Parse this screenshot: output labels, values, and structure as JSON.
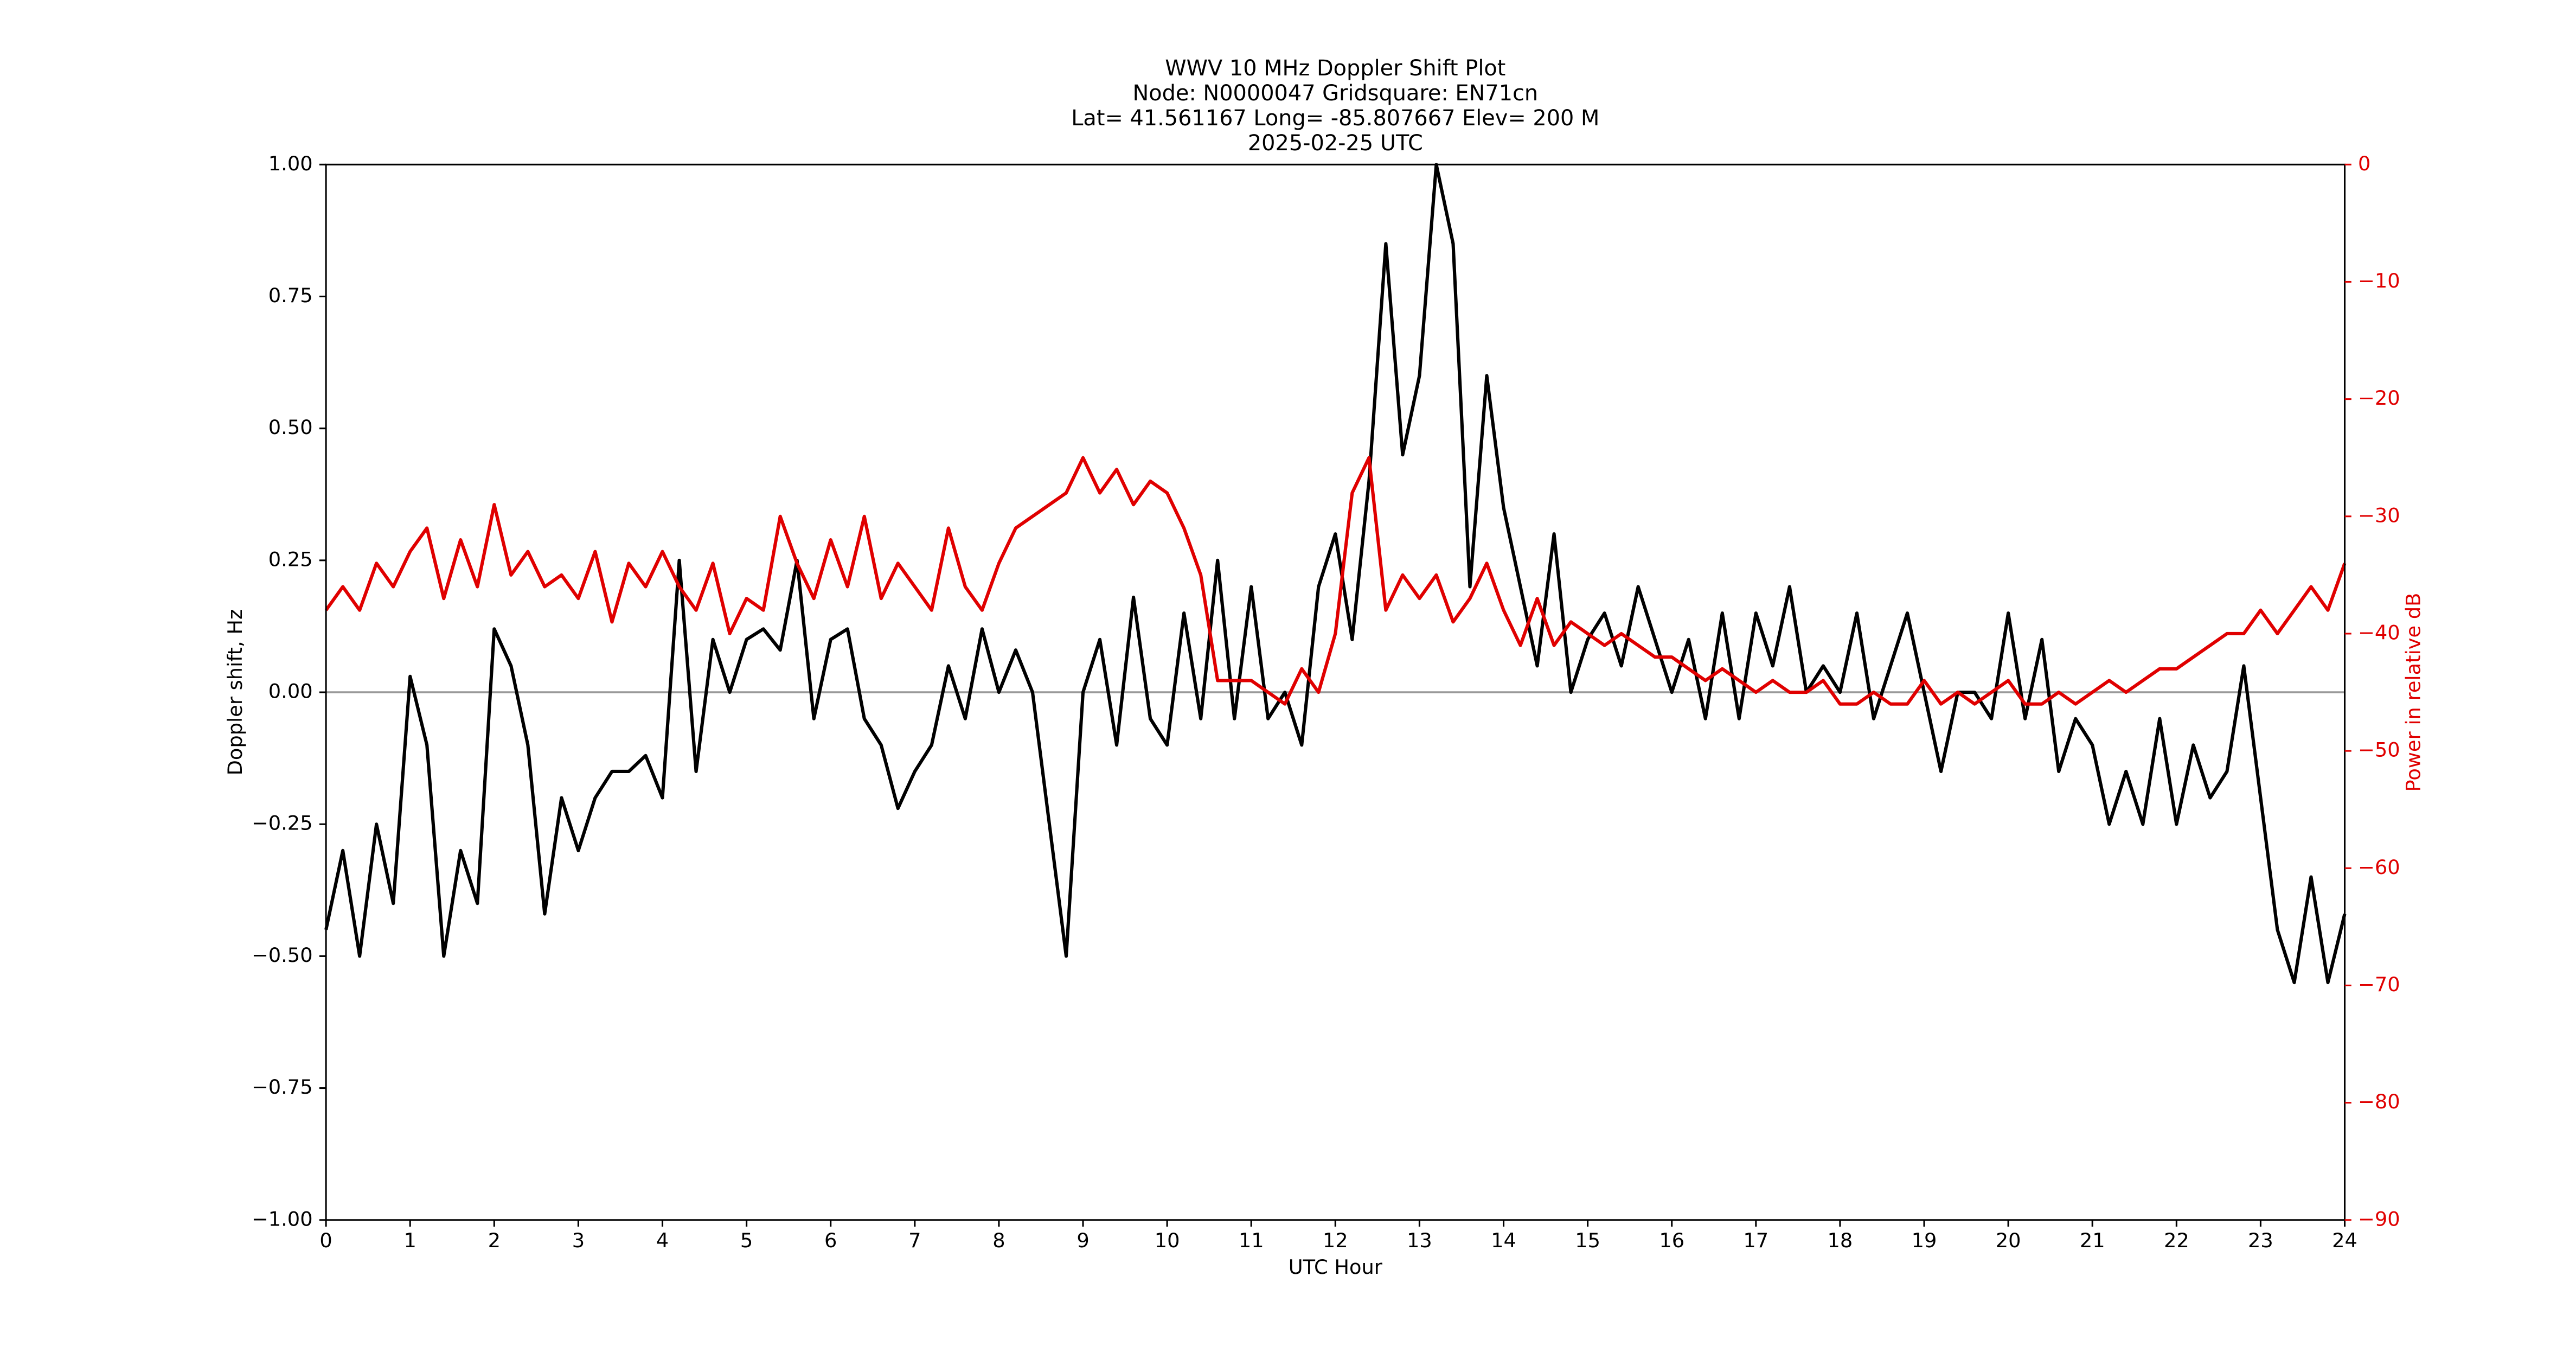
{
  "chart_data": {
    "type": "line",
    "title": [
      "WWV 10 MHz Doppler Shift Plot",
      "Node:  N0000047     Gridsquare:  EN71cn",
      "Lat= 41.561167    Long= -85.807667    Elev= 200 M",
      "2025-02-25  UTC"
    ],
    "xlabel": "UTC Hour",
    "ylabel": "Doppler shift, Hz",
    "y2label": "Power in relative dB",
    "xlim": [
      0,
      24
    ],
    "xticks": [
      0,
      1,
      2,
      3,
      4,
      5,
      6,
      7,
      8,
      9,
      10,
      11,
      12,
      13,
      14,
      15,
      16,
      17,
      18,
      19,
      20,
      21,
      22,
      23,
      24
    ],
    "ylim": [
      -1,
      1
    ],
    "yticks": [
      {
        "value": -1,
        "label": "−1.00"
      },
      {
        "value": -0.75,
        "label": "−0.75"
      },
      {
        "value": -0.5,
        "label": "−0.50"
      },
      {
        "value": -0.25,
        "label": "−0.25"
      },
      {
        "value": 0,
        "label": "0.00"
      },
      {
        "value": 0.25,
        "label": "0.25"
      },
      {
        "value": 0.5,
        "label": "0.50"
      },
      {
        "value": 0.75,
        "label": "0.75"
      },
      {
        "value": 1,
        "label": "1.00"
      }
    ],
    "y2lim": [
      -90,
      0
    ],
    "y2ticks": [
      {
        "value": -90,
        "label": "−90"
      },
      {
        "value": -80,
        "label": "−80"
      },
      {
        "value": -70,
        "label": "−70"
      },
      {
        "value": -60,
        "label": "−60"
      },
      {
        "value": -50,
        "label": "−50"
      },
      {
        "value": -40,
        "label": "−40"
      },
      {
        "value": -30,
        "label": "−30"
      },
      {
        "value": -20,
        "label": "−20"
      },
      {
        "value": -10,
        "label": "−10"
      },
      0
    ],
    "y2color": "#e00000",
    "hline": 0,
    "hline_color": "#999999",
    "x": [
      0,
      0.2,
      0.4,
      0.6,
      0.8,
      1,
      1.2,
      1.4,
      1.6,
      1.8,
      2,
      2.2,
      2.4,
      2.6,
      2.8,
      3,
      3.2,
      3.4,
      3.6,
      3.8,
      4,
      4.2,
      4.4,
      4.6,
      4.8,
      5,
      5.2,
      5.4,
      5.6,
      5.8,
      6,
      6.2,
      6.4,
      6.6,
      6.8,
      7,
      7.2,
      7.4,
      7.6,
      7.8,
      8,
      8.2,
      8.4,
      8.6,
      8.8,
      9,
      9.2,
      9.4,
      9.6,
      9.8,
      10,
      10.2,
      10.4,
      10.6,
      10.8,
      11,
      11.2,
      11.4,
      11.6,
      11.8,
      12,
      12.2,
      12.4,
      12.6,
      12.8,
      13,
      13.2,
      13.4,
      13.6,
      13.8,
      14,
      14.2,
      14.4,
      14.6,
      14.8,
      15,
      15.2,
      15.4,
      15.6,
      15.8,
      16,
      16.2,
      16.4,
      16.6,
      16.8,
      17,
      17.2,
      17.4,
      17.6,
      17.8,
      18,
      18.2,
      18.4,
      18.6,
      18.8,
      19,
      19.2,
      19.4,
      19.6,
      19.8,
      20,
      20.2,
      20.4,
      20.6,
      20.8,
      21,
      21.2,
      21.4,
      21.6,
      21.8,
      22,
      22.2,
      22.4,
      22.6,
      22.8,
      23,
      23.2,
      23.4,
      23.6,
      23.8,
      24
    ],
    "series": [
      {
        "color": "#000000",
        "values": [
          -0.45,
          -0.3,
          -0.5,
          -0.25,
          -0.4,
          0.03,
          -0.1,
          -0.5,
          -0.3,
          -0.4,
          0.12,
          0.05,
          -0.1,
          -0.42,
          -0.2,
          -0.3,
          -0.2,
          -0.15,
          -0.15,
          -0.12,
          -0.2,
          0.25,
          -0.15,
          0.1,
          0,
          0.1,
          0.12,
          0.08,
          0.25,
          -0.05,
          0.1,
          0.12,
          -0.05,
          -0.1,
          -0.22,
          -0.15,
          -0.1,
          0.05,
          -0.05,
          0.12,
          0,
          0.08,
          0,
          -0.25,
          -0.5,
          0,
          0.1,
          -0.1,
          0.18,
          -0.05,
          -0.1,
          0.15,
          -0.05,
          0.25,
          -0.05,
          0.2,
          -0.05,
          0,
          -0.1,
          0.2,
          0.3,
          0.1,
          0.4,
          0.85,
          0.45,
          0.6,
          1,
          0.85,
          0.2,
          0.6,
          0.35,
          0.2,
          0.05,
          0.3,
          0,
          0.1,
          0.15,
          0.05,
          0.2,
          0.1,
          0,
          0.1,
          -0.05,
          0.15,
          -0.05,
          0.15,
          0.05,
          0.2,
          0,
          0.05,
          0,
          0.15,
          -0.05,
          0.05,
          0.15,
          0,
          -0.15,
          0,
          0,
          -0.05,
          0.15,
          -0.05,
          0.1,
          -0.15,
          -0.05,
          -0.1,
          -0.25,
          -0.15,
          -0.25,
          -0.05,
          -0.25,
          -0.1,
          -0.2,
          -0.15,
          0.05,
          -0.2,
          -0.45,
          -0.55,
          -0.35,
          -0.55,
          -0.42
        ]
      },
      {
        "color": "#e00000",
        "axis": "y2",
        "values": [
          -38,
          -36,
          -38,
          -34,
          -36,
          -33,
          -31,
          -37,
          -32,
          -36,
          -29,
          -35,
          -33,
          -36,
          -35,
          -37,
          -33,
          -39,
          -34,
          -36,
          -33,
          -36,
          -38,
          -34,
          -40,
          -37,
          -38,
          -30,
          -34,
          -37,
          -32,
          -36,
          -30,
          -37,
          -34,
          -36,
          -38,
          -31,
          -36,
          -38,
          -34,
          -31,
          -30,
          -29,
          -28,
          -25,
          -28,
          -26,
          -29,
          -27,
          -28,
          -31,
          -35,
          -44,
          -44,
          -44,
          -45,
          -46,
          -43,
          -45,
          -40,
          -28,
          -25,
          -38,
          -35,
          -37,
          -35,
          -39,
          -37,
          -34,
          -38,
          -41,
          -37,
          -41,
          -39,
          -40,
          -41,
          -40,
          -41,
          -42,
          -42,
          -43,
          -44,
          -43,
          -44,
          -45,
          -44,
          -45,
          -45,
          -44,
          -46,
          -46,
          -45,
          -46,
          -46,
          -44,
          -46,
          -45,
          -46,
          -45,
          -44,
          -46,
          -46,
          -45,
          -46,
          -45,
          -44,
          -45,
          -44,
          -43,
          -43,
          -42,
          -41,
          -40,
          -40,
          -38,
          -40,
          -38,
          -36,
          -38,
          -34
        ]
      }
    ]
  }
}
